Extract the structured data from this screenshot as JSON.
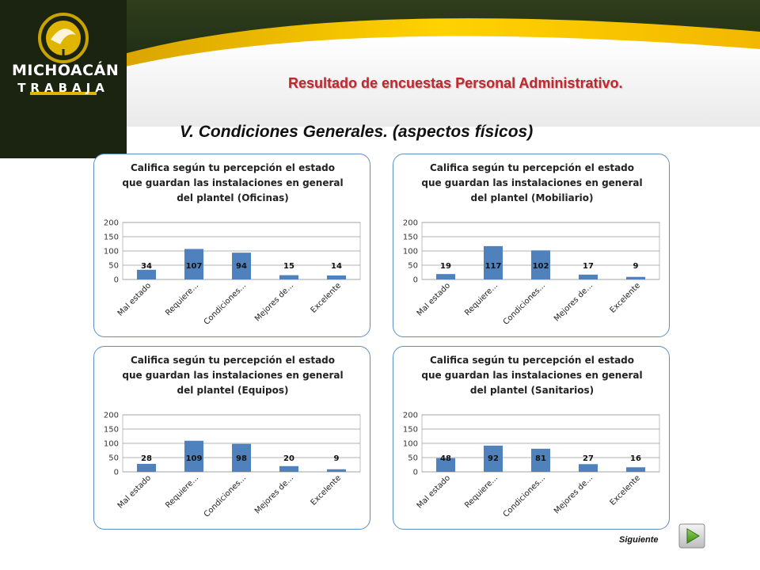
{
  "brand": {
    "name": "MICHOACÁN",
    "subname": "TRABAJA",
    "accent_color": "#f2c300",
    "header_color": "#1c2a14",
    "title_color": "#c1272d"
  },
  "banner_title": "Resultado de encuestas Personal Administrativo.",
  "section_title": "V. Condiciones Generales. (aspectos físicos)",
  "next": {
    "label": "Siguiente",
    "icon": "play-arrow-icon"
  },
  "chart_data": [
    {
      "type": "bar",
      "title_lines": [
        "Califica según tu percepción el estado",
        "que guardan las instalaciones en general",
        "del plantel (Oficinas)"
      ],
      "categories": [
        "Mal estado",
        "Requiere...",
        "Condiciones...",
        "Mejores de...",
        "Excelente"
      ],
      "values": [
        34,
        107,
        94,
        15,
        14
      ],
      "ylim": [
        0,
        200
      ],
      "yticks": [
        0,
        50,
        100,
        150,
        200
      ],
      "bar_color": "#4f81bd",
      "grid": true,
      "legend": "none"
    },
    {
      "type": "bar",
      "title_lines": [
        "Califica según tu percepción el estado",
        "que guardan las instalaciones en general",
        "del plantel (Mobiliario)"
      ],
      "categories": [
        "Mal estado",
        "Requiere...",
        "Condiciones...",
        "Mejores de...",
        "Excelente"
      ],
      "values": [
        19,
        117,
        102,
        17,
        9
      ],
      "ylim": [
        0,
        200
      ],
      "yticks": [
        0,
        50,
        100,
        150,
        200
      ],
      "bar_color": "#4f81bd",
      "grid": true,
      "legend": "none"
    },
    {
      "type": "bar",
      "title_lines": [
        "Califica según tu percepción el estado",
        "que guardan las instalaciones en general",
        "del plantel (Equipos)"
      ],
      "categories": [
        "Mal estado",
        "Requiere...",
        "Condiciones...",
        "Mejores de...",
        "Excelente"
      ],
      "values": [
        28,
        109,
        98,
        20,
        9
      ],
      "ylim": [
        0,
        200
      ],
      "yticks": [
        0,
        50,
        100,
        150,
        200
      ],
      "bar_color": "#4f81bd",
      "grid": true,
      "legend": "none"
    },
    {
      "type": "bar",
      "title_lines": [
        "Califica según tu percepción el estado",
        "que guardan las instalaciones en general",
        "del plantel (Sanitarios)"
      ],
      "categories": [
        "Mal estado",
        "Requiere...",
        "Condiciones...",
        "Mejores de...",
        "Excelente"
      ],
      "values": [
        48,
        92,
        81,
        27,
        16
      ],
      "ylim": [
        0,
        200
      ],
      "yticks": [
        0,
        50,
        100,
        150,
        200
      ],
      "bar_color": "#4f81bd",
      "grid": true,
      "legend": "none"
    }
  ]
}
